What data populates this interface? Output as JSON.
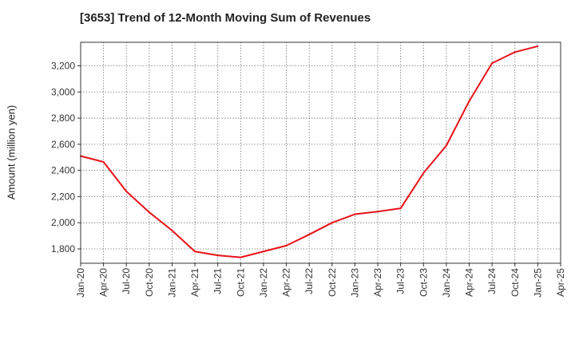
{
  "chart_data": {
    "type": "line",
    "title": "[3653]  Trend of 12-Month Moving Sum of Revenues",
    "xlabel": "",
    "ylabel": "Amount (million yen)",
    "ylim": [
      1690,
      3380
    ],
    "yticks": [
      1800,
      2000,
      2200,
      2400,
      2600,
      2800,
      3000,
      3200
    ],
    "ytick_labels": [
      "1,800",
      "2,000",
      "2,200",
      "2,400",
      "2,600",
      "2,800",
      "3,000",
      "3,200"
    ],
    "xticks": [
      "Jan-20",
      "Apr-20",
      "Jul-20",
      "Oct-20",
      "Jan-21",
      "Apr-21",
      "Jul-21",
      "Oct-21",
      "Jan-22",
      "Apr-22",
      "Jul-22",
      "Oct-22",
      "Jan-23",
      "Apr-23",
      "Jul-23",
      "Oct-23",
      "Jan-24",
      "Apr-24",
      "Jul-24",
      "Oct-24",
      "Jan-25",
      "Apr-25"
    ],
    "grid": true,
    "color": "#e8121a",
    "series": [
      {
        "x": [
          "Jan-20",
          "Apr-20",
          "Jul-20",
          "Oct-20",
          "Jan-21",
          "Apr-21",
          "Jul-21",
          "Oct-21",
          "Jan-22",
          "Apr-22",
          "Jul-22",
          "Oct-22",
          "Jan-23",
          "Apr-23",
          "Jul-23",
          "Oct-23",
          "Jan-24",
          "Apr-24",
          "Jul-24",
          "Oct-24",
          "Jan-25"
        ],
        "values": [
          2510,
          2465,
          2240,
          2080,
          1940,
          1780,
          1750,
          1735,
          1780,
          1825,
          1910,
          2000,
          2065,
          2085,
          2110,
          2380,
          2590,
          2930,
          3220,
          3305,
          3350
        ]
      }
    ]
  }
}
